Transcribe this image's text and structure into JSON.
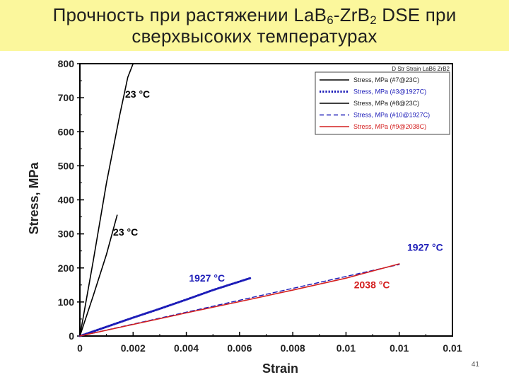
{
  "title": {
    "line1_prefix": "Прочность при растяжении La",
    "line1_b": "B",
    "line1_sub6": "6",
    "line1_mid": "-Zr",
    "line1_b2": "B",
    "line1_sub2": "2",
    "line1_suffix": " DSE при",
    "line2": "сверхвысоких температурах"
  },
  "page_number": "41",
  "colors": {
    "title_band": "#fbf79c",
    "black_series": "#000000",
    "blue_series": "#1c1cb8",
    "red_series": "#d42020",
    "blue_label": "#1c1cb8",
    "red_label": "#d42020"
  },
  "chart_data": {
    "type": "line",
    "title": "",
    "xlabel": "Strain",
    "ylabel": "Stress, MPa",
    "xlim": [
      0,
      0.014
    ],
    "ylim": [
      0,
      800
    ],
    "xticks": [
      0,
      0.002,
      0.004,
      0.006,
      0.008,
      0.01,
      0.012,
      0.014
    ],
    "xtick_labels": [
      "0",
      "0.002",
      "0.004",
      "0.006",
      "0.008",
      "0.01",
      "0.01",
      "0.01"
    ],
    "yticks": [
      0,
      100,
      200,
      300,
      400,
      500,
      600,
      700,
      800
    ],
    "ytick_labels": [
      "0",
      "100",
      "200",
      "300",
      "400",
      "500",
      "600",
      "700",
      "800"
    ],
    "grid": false,
    "legend_header": "D Str Strain LaB6 ZrB2",
    "legend_position": "top-right",
    "series": [
      {
        "name": "Stress, MPa (#7@23C)",
        "color": "#000000",
        "dash": "solid",
        "x": [
          0,
          0.0005,
          0.001,
          0.0015,
          0.0018,
          0.002
        ],
        "y": [
          0,
          220,
          450,
          650,
          760,
          800
        ]
      },
      {
        "name": "Stress, MPa (#3@1927C)",
        "color": "#1c1cb8",
        "dash": "dotted",
        "x": [
          0,
          0.001,
          0.002,
          0.003,
          0.004,
          0.005,
          0.006,
          0.0064
        ],
        "y": [
          0,
          27,
          54,
          80,
          107,
          135,
          160,
          170
        ]
      },
      {
        "name": "Stress, MPa (#8@23C)",
        "color": "#000000",
        "dash": "solid",
        "x": [
          0,
          0.0005,
          0.001,
          0.0014
        ],
        "y": [
          0,
          118,
          240,
          355
        ]
      },
      {
        "name": "Stress, MPa (#10@1927C)",
        "color": "#1c1cb8",
        "dash": "dashed",
        "x": [
          0,
          0.002,
          0.004,
          0.006,
          0.008,
          0.01,
          0.012
        ],
        "y": [
          0,
          35,
          70,
          105,
          140,
          175,
          210
        ]
      },
      {
        "name": "Stress, MPa (#9@2038C)",
        "color": "#d42020",
        "dash": "solid",
        "x": [
          0,
          0.002,
          0.004,
          0.006,
          0.008,
          0.01,
          0.012
        ],
        "y": [
          0,
          34,
          68,
          101,
          135,
          170,
          212
        ]
      }
    ],
    "annotations": [
      {
        "text": "23 °C",
        "x": 0.0017,
        "y": 700,
        "color": "#000000"
      },
      {
        "text": "23 °C",
        "x": 0.00125,
        "y": 295,
        "color": "#000000"
      },
      {
        "text": "1927 °C",
        "x": 0.0041,
        "y": 160,
        "color": "#1c1cb8"
      },
      {
        "text": "1927 °C",
        "x": 0.0123,
        "y": 250,
        "color": "#1c1cb8"
      },
      {
        "text": "2038 °C",
        "x": 0.0103,
        "y": 140,
        "color": "#d42020"
      }
    ]
  }
}
